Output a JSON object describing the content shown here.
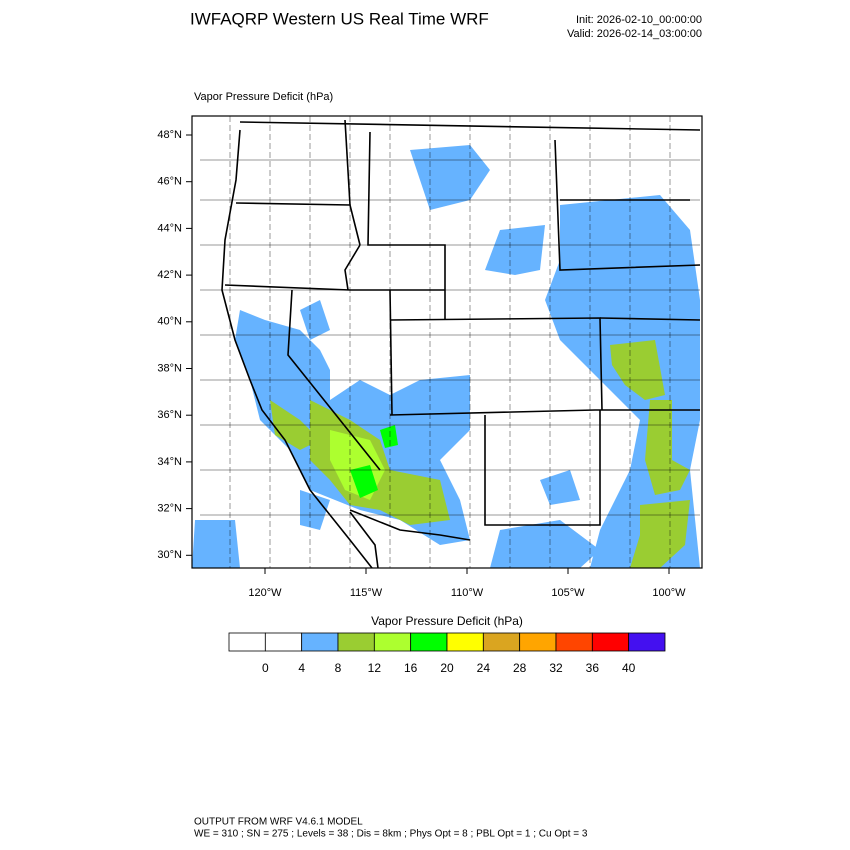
{
  "header": {
    "title": "IWFAQRP Western US Real Time WRF",
    "init": "Init: 2026-02-10_00:00:00",
    "valid": "Valid: 2026-02-14_03:00:00"
  },
  "map": {
    "subtitle": "Vapor Pressure Deficit   (hPa)",
    "lat_labels": [
      "48°N",
      "46°N",
      "44°N",
      "42°N",
      "40°N",
      "38°N",
      "36°N",
      "34°N",
      "32°N",
      "30°N"
    ],
    "lon_labels": [
      "120°W",
      "115°W",
      "110°W",
      "105°W",
      "100°W"
    ]
  },
  "colorbar": {
    "title": "Vapor Pressure Deficit  (hPa)",
    "colors": [
      "#ffffff",
      "#ffffff",
      "#66b3ff",
      "#9acd32",
      "#adff2f",
      "#00ff00",
      "#ffff00",
      "#daa520",
      "#ffa500",
      "#ff4500",
      "#ff0000",
      "#4410f0"
    ],
    "levels": [
      0,
      4,
      8,
      12,
      16,
      20,
      24,
      28,
      32,
      36,
      40
    ]
  },
  "footer": {
    "line1": "OUTPUT FROM WRF V4.6.1 MODEL",
    "line2": "WE = 310 ; SN = 275 ; Levels = 38 ; Dis = 8km ; Phys Opt = 8 ; PBL Opt = 1 ; Cu Opt = 3"
  }
}
